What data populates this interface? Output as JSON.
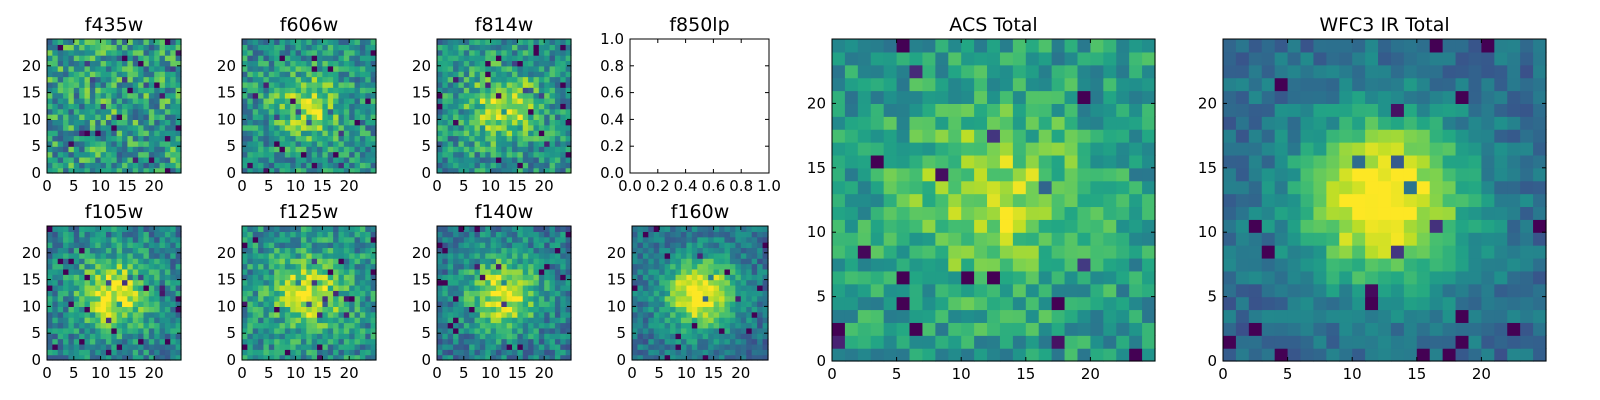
{
  "figure_title": "",
  "chart_data": [
    {
      "id": "f435w",
      "type": "heatmap",
      "title": "f435w",
      "grid_size": 25,
      "cmap": "viridis",
      "peak": 0.05,
      "noise": 0.55,
      "base": 0.55,
      "seed": 11,
      "xlim": [
        0,
        25
      ],
      "ylim": [
        0,
        25
      ],
      "xticks": [
        0,
        5,
        10,
        15,
        20
      ],
      "yticks": [
        0,
        5,
        10,
        15,
        20
      ],
      "xlabel": "",
      "ylabel": ""
    },
    {
      "id": "f606w",
      "type": "heatmap",
      "title": "f606w",
      "grid_size": 25,
      "cmap": "viridis",
      "peak": 0.35,
      "noise": 0.45,
      "base": 0.5,
      "seed": 23,
      "xlim": [
        0,
        25
      ],
      "ylim": [
        0,
        25
      ],
      "xticks": [
        0,
        5,
        10,
        15,
        20
      ],
      "yticks": [
        0,
        5,
        10,
        15,
        20
      ],
      "xlabel": "",
      "ylabel": ""
    },
    {
      "id": "f814w",
      "type": "heatmap",
      "title": "f814w",
      "grid_size": 25,
      "cmap": "viridis",
      "peak": 0.4,
      "noise": 0.45,
      "base": 0.5,
      "seed": 37,
      "xlim": [
        0,
        25
      ],
      "ylim": [
        0,
        25
      ],
      "xticks": [
        0,
        5,
        10,
        15,
        20
      ],
      "yticks": [
        0,
        5,
        10,
        15,
        20
      ],
      "xlabel": "",
      "ylabel": ""
    },
    {
      "id": "f850lp",
      "type": "empty",
      "title": "f850lp",
      "xlim": [
        0,
        1
      ],
      "ylim": [
        0,
        1
      ],
      "xticks": [
        "0.0",
        "0.2",
        "0.4",
        "0.6",
        "0.8",
        "1.0"
      ],
      "yticks": [
        "0.0",
        "0.2",
        "0.4",
        "0.6",
        "0.8",
        "1.0"
      ],
      "xlabel": "",
      "ylabel": ""
    },
    {
      "id": "f105w",
      "type": "heatmap",
      "title": "f105w",
      "grid_size": 25,
      "cmap": "viridis",
      "peak": 0.55,
      "noise": 0.4,
      "base": 0.45,
      "seed": 53,
      "xlim": [
        0,
        25
      ],
      "ylim": [
        0,
        25
      ],
      "xticks": [
        0,
        5,
        10,
        15,
        20
      ],
      "yticks": [
        0,
        5,
        10,
        15,
        20
      ],
      "xlabel": "",
      "ylabel": ""
    },
    {
      "id": "f125w",
      "type": "heatmap",
      "title": "f125w",
      "grid_size": 25,
      "cmap": "viridis",
      "peak": 0.45,
      "noise": 0.42,
      "base": 0.5,
      "seed": 67,
      "xlim": [
        0,
        25
      ],
      "ylim": [
        0,
        25
      ],
      "xticks": [
        0,
        5,
        10,
        15,
        20
      ],
      "yticks": [
        0,
        5,
        10,
        15,
        20
      ],
      "xlabel": "",
      "ylabel": ""
    },
    {
      "id": "f140w",
      "type": "heatmap",
      "title": "f140w",
      "grid_size": 25,
      "cmap": "viridis",
      "peak": 0.55,
      "noise": 0.38,
      "base": 0.42,
      "seed": 79,
      "xlim": [
        0,
        25
      ],
      "ylim": [
        0,
        25
      ],
      "xticks": [
        0,
        5,
        10,
        15,
        20
      ],
      "yticks": [
        0,
        5,
        10,
        15,
        20
      ],
      "xlabel": "",
      "ylabel": ""
    },
    {
      "id": "f160w",
      "type": "heatmap",
      "title": "f160w",
      "grid_size": 25,
      "cmap": "viridis",
      "peak": 0.7,
      "noise": 0.3,
      "base": 0.38,
      "seed": 97,
      "xlim": [
        0,
        25
      ],
      "ylim": [
        0,
        25
      ],
      "xticks": [
        0,
        5,
        10,
        15,
        20
      ],
      "yticks": [
        0,
        5,
        10,
        15,
        20
      ],
      "xlabel": "",
      "ylabel": ""
    },
    {
      "id": "acs-total",
      "type": "heatmap",
      "title": "ACS Total",
      "grid_size": 25,
      "cmap": "viridis",
      "peak": 0.35,
      "noise": 0.35,
      "base": 0.55,
      "seed": 131,
      "xlim": [
        0,
        25
      ],
      "ylim": [
        0,
        25
      ],
      "xticks": [
        0,
        5,
        10,
        15,
        20
      ],
      "yticks": [
        0,
        5,
        10,
        15,
        20
      ],
      "xlabel": "",
      "ylabel": ""
    },
    {
      "id": "wfc3-ir-total",
      "type": "heatmap",
      "title": "WFC3 IR Total",
      "grid_size": 25,
      "cmap": "viridis",
      "peak": 0.75,
      "noise": 0.22,
      "base": 0.35,
      "seed": 157,
      "xlim": [
        0,
        25
      ],
      "ylim": [
        0,
        25
      ],
      "xticks": [
        0,
        5,
        10,
        15,
        20
      ],
      "yticks": [
        0,
        5,
        10,
        15,
        20
      ],
      "xlabel": "",
      "ylabel": ""
    }
  ]
}
